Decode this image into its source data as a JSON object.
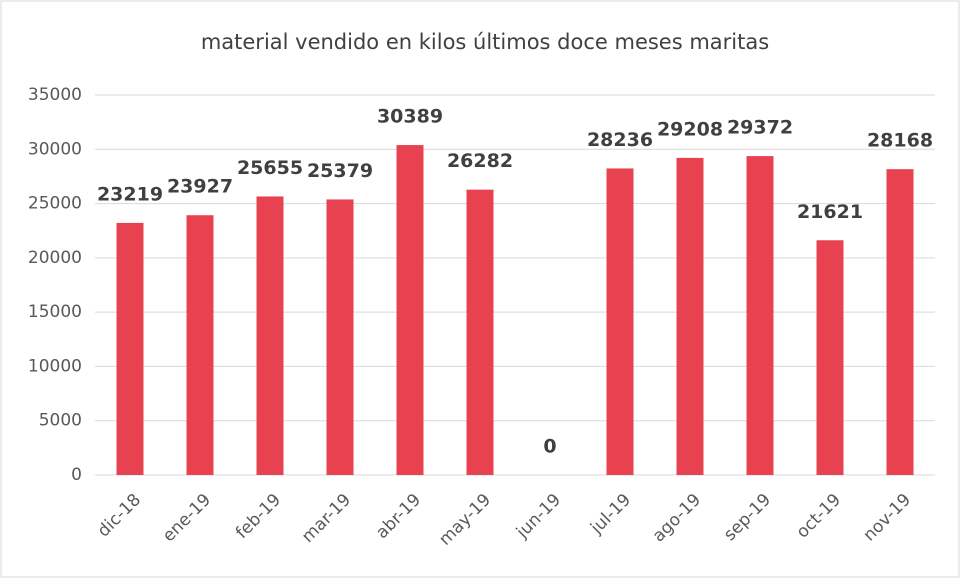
{
  "chart_data": {
    "type": "bar",
    "title": "material vendido en kilos últimos doce meses maritas",
    "categories": [
      "dic-18",
      "ene-19",
      "feb-19",
      "mar-19",
      "abr-19",
      "may-19",
      "jun-19",
      "jul-19",
      "ago-19",
      "sep-19",
      "oct-19",
      "nov-19"
    ],
    "values": [
      23219,
      23927,
      25655,
      25379,
      30389,
      26282,
      0,
      28236,
      29208,
      29372,
      21621,
      28168
    ],
    "color": "#e8414f",
    "ylim": [
      0,
      35000
    ],
    "yticks": [
      0,
      5000,
      10000,
      15000,
      20000,
      25000,
      30000,
      35000
    ],
    "grid": true
  }
}
